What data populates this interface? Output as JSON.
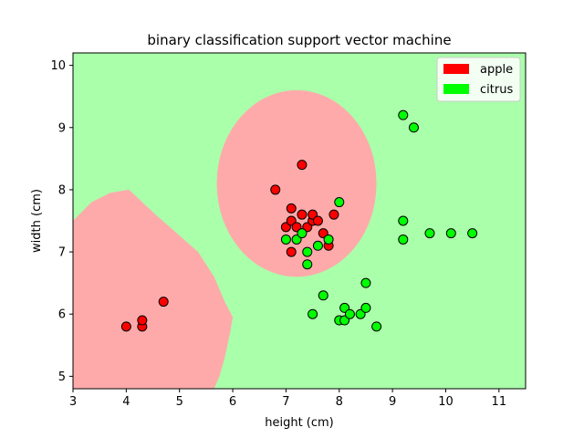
{
  "chart_data": {
    "type": "scatter",
    "title": "binary classification support vector machine",
    "xlabel": "height (cm)",
    "ylabel": "width (cm)",
    "xlim": [
      3,
      11.5
    ],
    "ylim": [
      4.8,
      10.2
    ],
    "xticks": [
      "3",
      "4",
      "5",
      "6",
      "7",
      "8",
      "9",
      "10",
      "11"
    ],
    "yticks": [
      "5",
      "6",
      "7",
      "8",
      "9",
      "10"
    ],
    "grid": false,
    "legend_position": "top-right",
    "background_color": "#aaffaa",
    "decision_regions": [
      {
        "class": "apple",
        "color": "#ffaaaa",
        "boundary": [
          [
            3.0,
            7.5
          ],
          [
            3.35,
            7.8
          ],
          [
            3.7,
            7.95
          ],
          [
            4.05,
            8.0
          ],
          [
            4.55,
            7.6
          ],
          [
            4.95,
            7.3
          ],
          [
            5.35,
            7.0
          ],
          [
            5.65,
            6.6
          ],
          [
            5.85,
            6.2
          ],
          [
            6.0,
            5.95
          ],
          [
            5.95,
            5.7
          ],
          [
            5.85,
            5.3
          ],
          [
            5.75,
            5.0
          ],
          [
            5.65,
            4.8
          ],
          [
            3.0,
            4.8
          ]
        ]
      },
      {
        "class": "apple",
        "color": "#ffaaaa",
        "ellipse": {
          "cx": 7.2,
          "cy": 8.1,
          "rx": 1.5,
          "ry": 1.5
        }
      }
    ],
    "series": [
      {
        "name": "apple",
        "color": "#ff0000",
        "points": [
          [
            4.0,
            5.8
          ],
          [
            4.3,
            5.8
          ],
          [
            4.3,
            5.9
          ],
          [
            4.7,
            6.2
          ],
          [
            6.8,
            8.0
          ],
          [
            7.3,
            8.4
          ],
          [
            7.0,
            7.4
          ],
          [
            7.1,
            7.5
          ],
          [
            7.1,
            7.7
          ],
          [
            7.2,
            7.4
          ],
          [
            7.3,
            7.6
          ],
          [
            7.4,
            7.4
          ],
          [
            7.5,
            7.5
          ],
          [
            7.5,
            7.6
          ],
          [
            7.6,
            7.5
          ],
          [
            7.7,
            7.3
          ],
          [
            7.8,
            7.1
          ],
          [
            7.9,
            7.6
          ],
          [
            7.1,
            7.0
          ]
        ]
      },
      {
        "name": "citrus",
        "color": "#00ff00",
        "points": [
          [
            7.0,
            7.2
          ],
          [
            7.2,
            7.2
          ],
          [
            7.3,
            7.3
          ],
          [
            7.4,
            7.0
          ],
          [
            7.4,
            6.8
          ],
          [
            7.6,
            7.1
          ],
          [
            7.8,
            7.2
          ],
          [
            8.0,
            7.8
          ],
          [
            7.5,
            6.0
          ],
          [
            7.7,
            6.3
          ],
          [
            8.0,
            5.9
          ],
          [
            8.1,
            5.9
          ],
          [
            8.1,
            6.1
          ],
          [
            8.2,
            6.0
          ],
          [
            8.4,
            6.0
          ],
          [
            8.5,
            6.1
          ],
          [
            8.5,
            6.5
          ],
          [
            8.7,
            5.8
          ],
          [
            9.2,
            9.2
          ],
          [
            9.4,
            9.0
          ],
          [
            9.2,
            7.5
          ],
          [
            9.2,
            7.2
          ],
          [
            9.7,
            7.3
          ],
          [
            10.1,
            7.3
          ],
          [
            10.5,
            7.3
          ]
        ]
      }
    ]
  }
}
